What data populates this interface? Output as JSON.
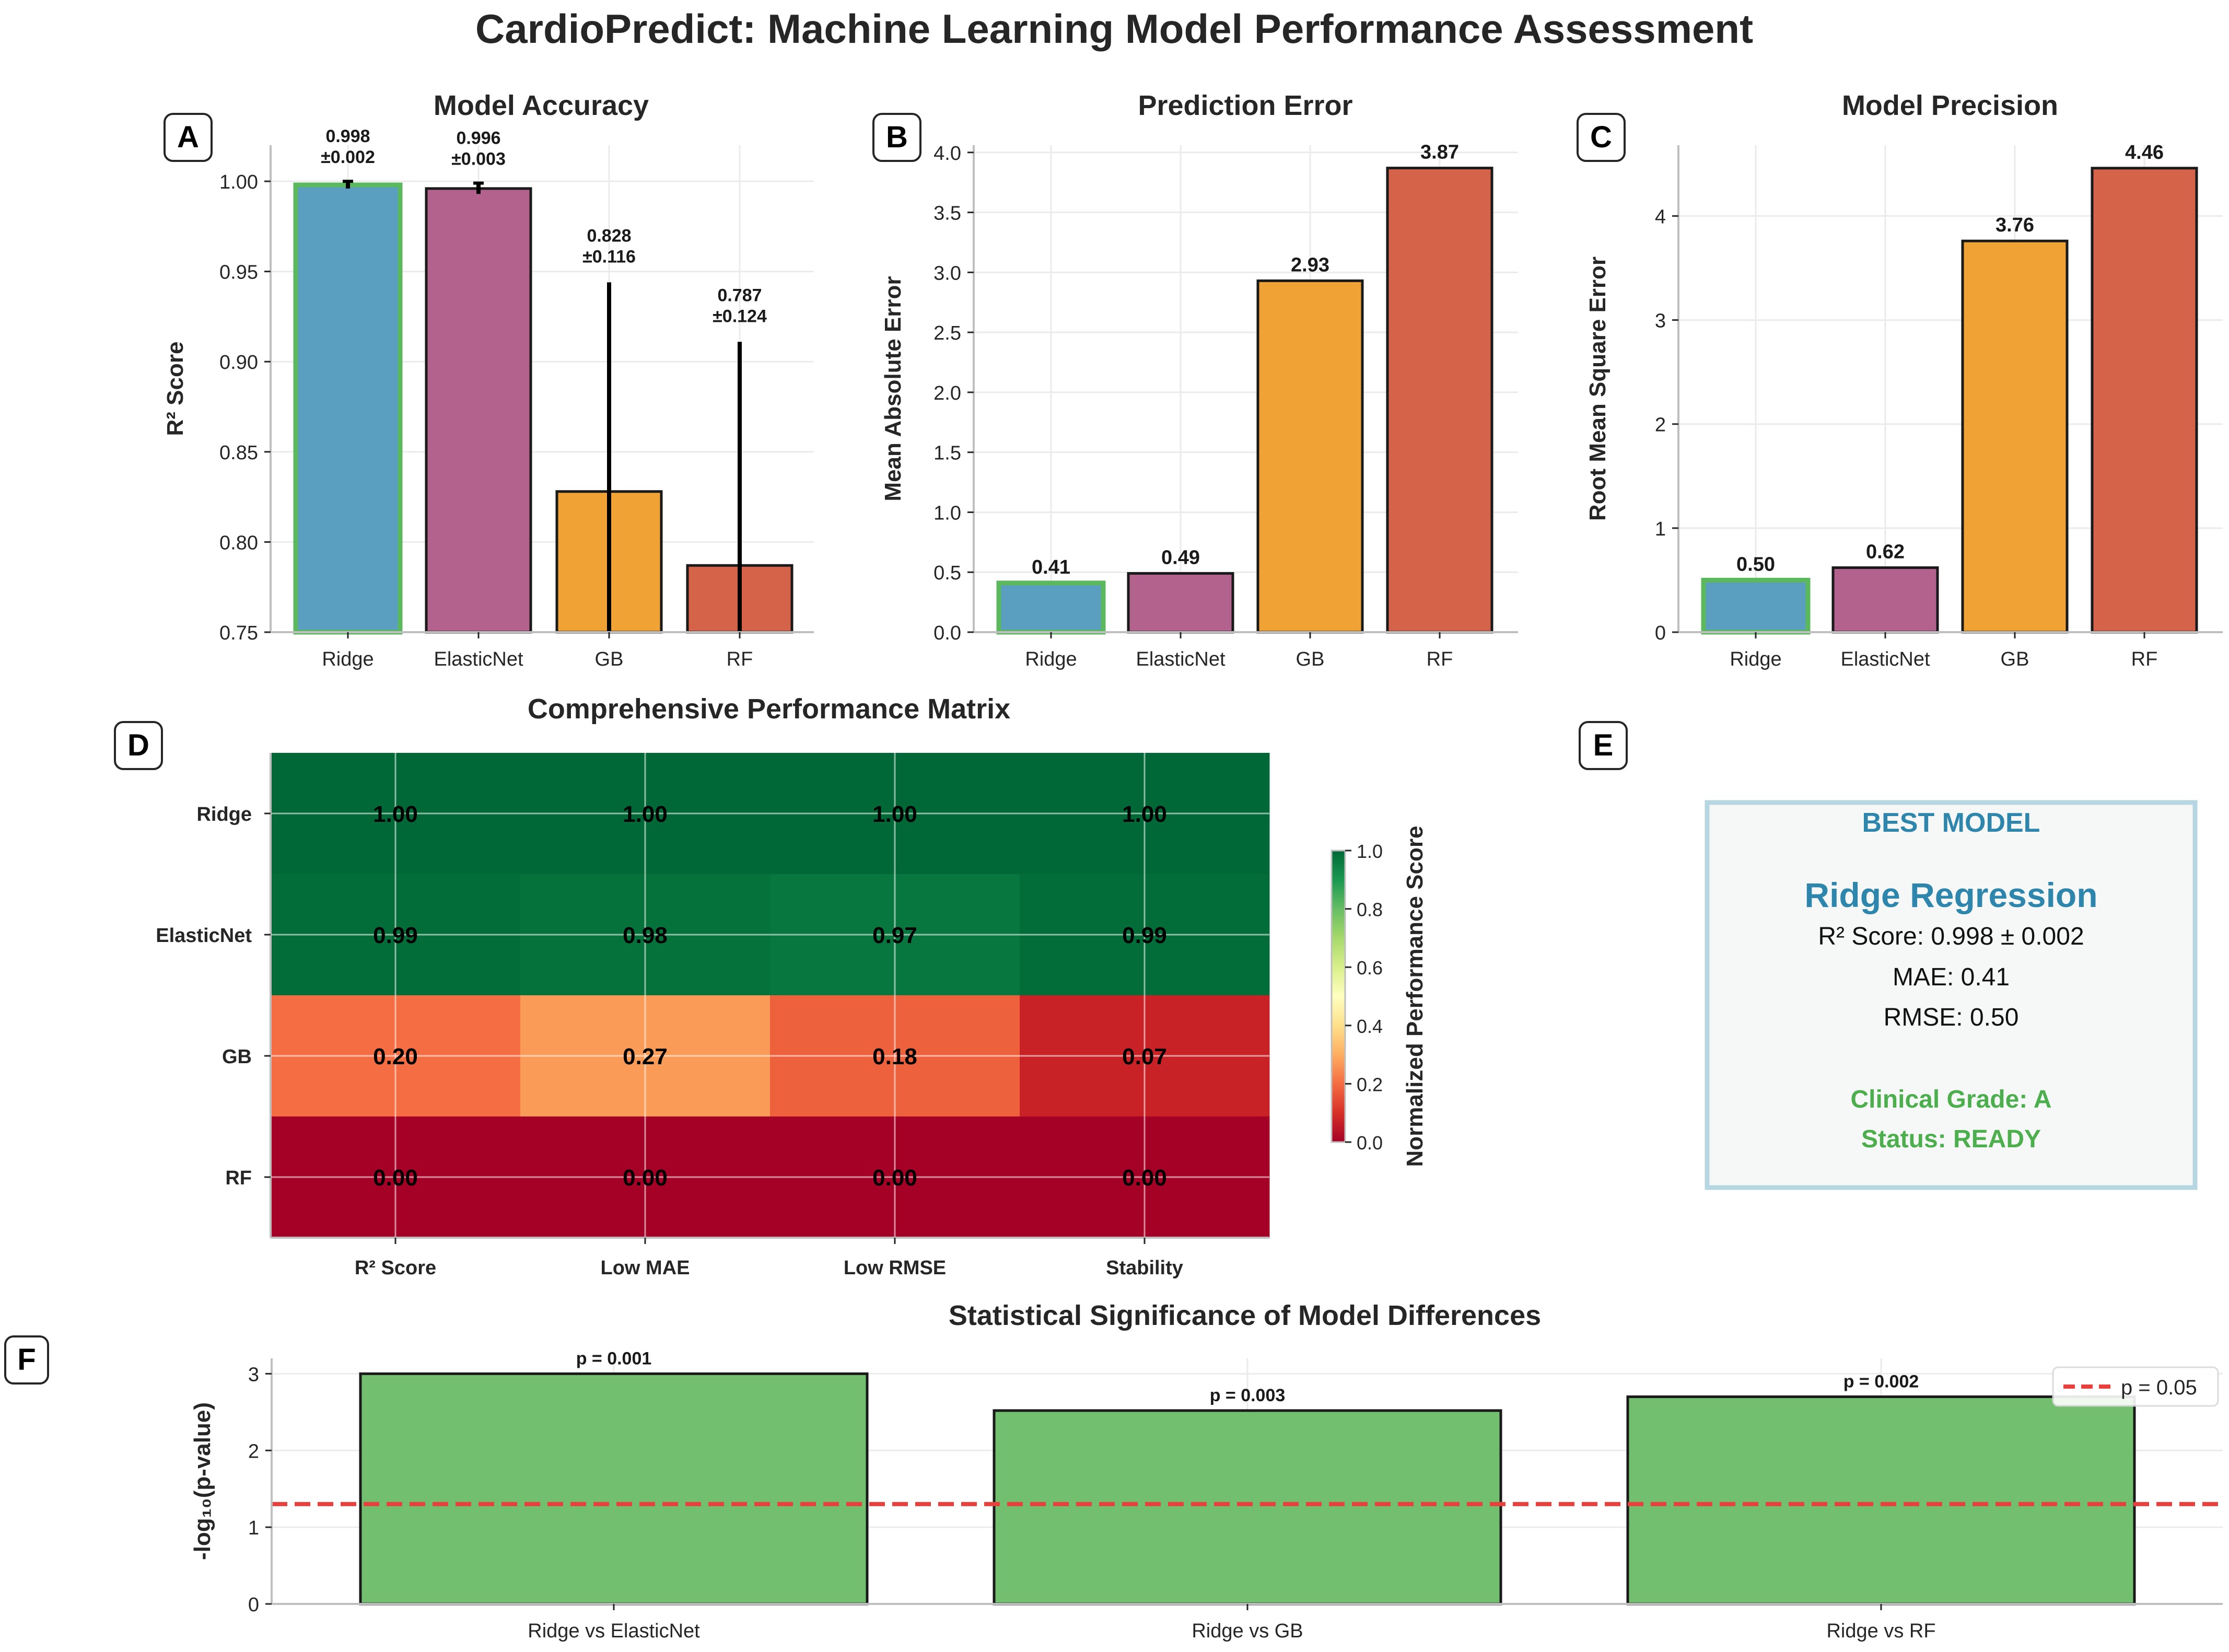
{
  "figure": {
    "title": "CardioPredict: Machine Learning Model Performance Assessment"
  },
  "colors": {
    "ridge": "#5a9fc0",
    "elasticnet": "#b3628e",
    "gb": "#f0a234",
    "rf": "#d5634a",
    "best_outline": "#5cb85c",
    "significant": "#72bf6f",
    "threshold": "#e8403d",
    "best_title": "#2f86ad",
    "best_grade": "#4cae4c",
    "best_box_fill": "#f5f8f7",
    "best_box_edge": "#b6d7e2"
  },
  "panels": {
    "A": {
      "letter": "A"
    },
    "B": {
      "letter": "B"
    },
    "C": {
      "letter": "C"
    },
    "D": {
      "letter": "D"
    },
    "E": {
      "letter": "E"
    },
    "F": {
      "letter": "F"
    }
  },
  "best_model": {
    "heading": "BEST MODEL",
    "name": "Ridge Regression",
    "r2_line": "R² Score: 0.998 ± 0.002",
    "mae_line": "MAE: 0.41",
    "rmse_line": "RMSE: 0.50",
    "grade_line": "Clinical Grade: A",
    "status_line": "Status: READY"
  },
  "chart_data": [
    {
      "id": "A",
      "type": "bar",
      "title": "Model Accuracy",
      "xlabel": "",
      "ylabel": "R² Score",
      "categories": [
        "Ridge",
        "ElasticNet",
        "GB",
        "RF"
      ],
      "values": [
        0.998,
        0.996,
        0.828,
        0.787
      ],
      "errors": [
        0.002,
        0.003,
        0.116,
        0.124
      ],
      "data_labels": [
        [
          "0.998",
          "±0.002"
        ],
        [
          "0.996",
          "±0.003"
        ],
        [
          "0.828",
          "±0.116"
        ],
        [
          "0.787",
          "±0.124"
        ]
      ],
      "ylim": [
        0.75,
        1.02
      ],
      "yticks": [
        0.75,
        0.8,
        0.85,
        0.9,
        0.95,
        1.0
      ],
      "ytick_labels": [
        "0.75",
        "0.80",
        "0.85",
        "0.90",
        "0.95",
        "1.00"
      ],
      "highlight": "Ridge",
      "grid": true
    },
    {
      "id": "B",
      "type": "bar",
      "title": "Prediction Error",
      "xlabel": "",
      "ylabel": "Mean Absolute Error",
      "categories": [
        "Ridge",
        "ElasticNet",
        "GB",
        "RF"
      ],
      "values": [
        0.41,
        0.49,
        2.93,
        3.87
      ],
      "data_labels": [
        "0.41",
        "0.49",
        "2.93",
        "3.87"
      ],
      "ylim": [
        0,
        4.06
      ],
      "yticks": [
        0,
        0.5,
        1.0,
        1.5,
        2.0,
        2.5,
        3.0,
        3.5,
        4.0
      ],
      "ytick_labels": [
        "0.0",
        "0.5",
        "1.0",
        "1.5",
        "2.0",
        "2.5",
        "3.0",
        "3.5",
        "4.0"
      ],
      "highlight": "Ridge",
      "grid": true
    },
    {
      "id": "C",
      "type": "bar",
      "title": "Model Precision",
      "xlabel": "",
      "ylabel": "Root Mean Square Error",
      "categories": [
        "Ridge",
        "ElasticNet",
        "GB",
        "RF"
      ],
      "values": [
        0.5,
        0.62,
        3.76,
        4.46
      ],
      "data_labels": [
        "0.50",
        "0.62",
        "3.76",
        "4.46"
      ],
      "ylim": [
        0,
        4.68
      ],
      "yticks": [
        0,
        1,
        2,
        3,
        4
      ],
      "ytick_labels": [
        "0",
        "1",
        "2",
        "3",
        "4"
      ],
      "highlight": "Ridge",
      "grid": true
    },
    {
      "id": "D",
      "type": "heatmap",
      "title": "Comprehensive Performance Matrix",
      "rows": [
        "Ridge",
        "ElasticNet",
        "GB",
        "RF"
      ],
      "cols": [
        "R² Score",
        "Low MAE",
        "Low RMSE",
        "Stability"
      ],
      "values": [
        [
          1.0,
          1.0,
          1.0,
          1.0
        ],
        [
          0.99,
          0.98,
          0.97,
          0.99
        ],
        [
          0.2,
          0.27,
          0.18,
          0.07
        ],
        [
          0.0,
          0.0,
          0.0,
          0.0
        ]
      ],
      "cell_labels": [
        [
          "1.00",
          "1.00",
          "1.00",
          "1.00"
        ],
        [
          "0.99",
          "0.98",
          "0.97",
          "0.99"
        ],
        [
          "0.20",
          "0.27",
          "0.18",
          "0.07"
        ],
        [
          "0.00",
          "0.00",
          "0.00",
          "0.00"
        ]
      ],
      "colorbar": {
        "label": "Normalized Performance Score",
        "range": [
          0,
          1
        ],
        "ticks": [
          0.0,
          0.2,
          0.4,
          0.6,
          0.8,
          1.0
        ],
        "tick_labels": [
          "0.0",
          "0.2",
          "0.4",
          "0.6",
          "0.8",
          "1.0"
        ],
        "colormap": "RdYlGn"
      },
      "grid": true
    },
    {
      "id": "F",
      "type": "bar",
      "title": "Statistical Significance of Model Differences",
      "xlabel": "",
      "ylabel": "-log₁₀(p-value)",
      "categories": [
        "Ridge vs ElasticNet",
        "Ridge vs GB",
        "Ridge vs RF"
      ],
      "values": [
        3.0,
        2.52,
        2.7
      ],
      "data_labels": [
        "p = 0.001",
        "p = 0.003",
        "p = 0.002"
      ],
      "ylim": [
        0,
        3.2
      ],
      "yticks": [
        0,
        1,
        2,
        3
      ],
      "ytick_labels": [
        "0",
        "1",
        "2",
        "3"
      ],
      "threshold": {
        "value": 1.301,
        "label": "p = 0.05"
      },
      "legend": "upper right",
      "grid": true
    }
  ]
}
